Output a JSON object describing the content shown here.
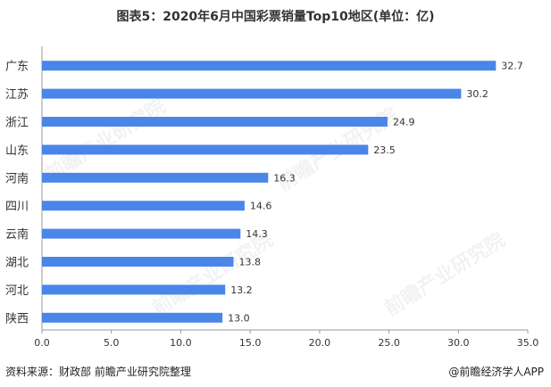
{
  "title": "图表5：2020年6月中国彩票销量Top10地区(单位：亿)",
  "source": "资料来源：财政部 前瞻产业研究院整理",
  "credit": "@前瞻经济学人APP",
  "watermark": "前瞻产业研究院",
  "colors": {
    "bar": "#4a86e8",
    "axis": "#999999",
    "text": "#333333"
  },
  "chart_data": {
    "type": "bar",
    "orientation": "horizontal",
    "categories": [
      "广东",
      "江苏",
      "浙江",
      "山东",
      "河南",
      "四川",
      "云南",
      "湖北",
      "河北",
      "陕西"
    ],
    "values": [
      32.7,
      30.2,
      24.9,
      23.5,
      16.3,
      14.6,
      14.3,
      13.8,
      13.2,
      13.0
    ],
    "value_labels": [
      "32.7",
      "30.2",
      "24.9",
      "23.5",
      "16.3",
      "14.6",
      "14.3",
      "13.8",
      "13.2",
      "13.0"
    ],
    "xticks": [
      "0.0",
      "5.0",
      "10.0",
      "15.0",
      "20.0",
      "25.0",
      "30.0",
      "35.0"
    ],
    "xlim": [
      0,
      35
    ],
    "grid": false,
    "legend": "none"
  }
}
